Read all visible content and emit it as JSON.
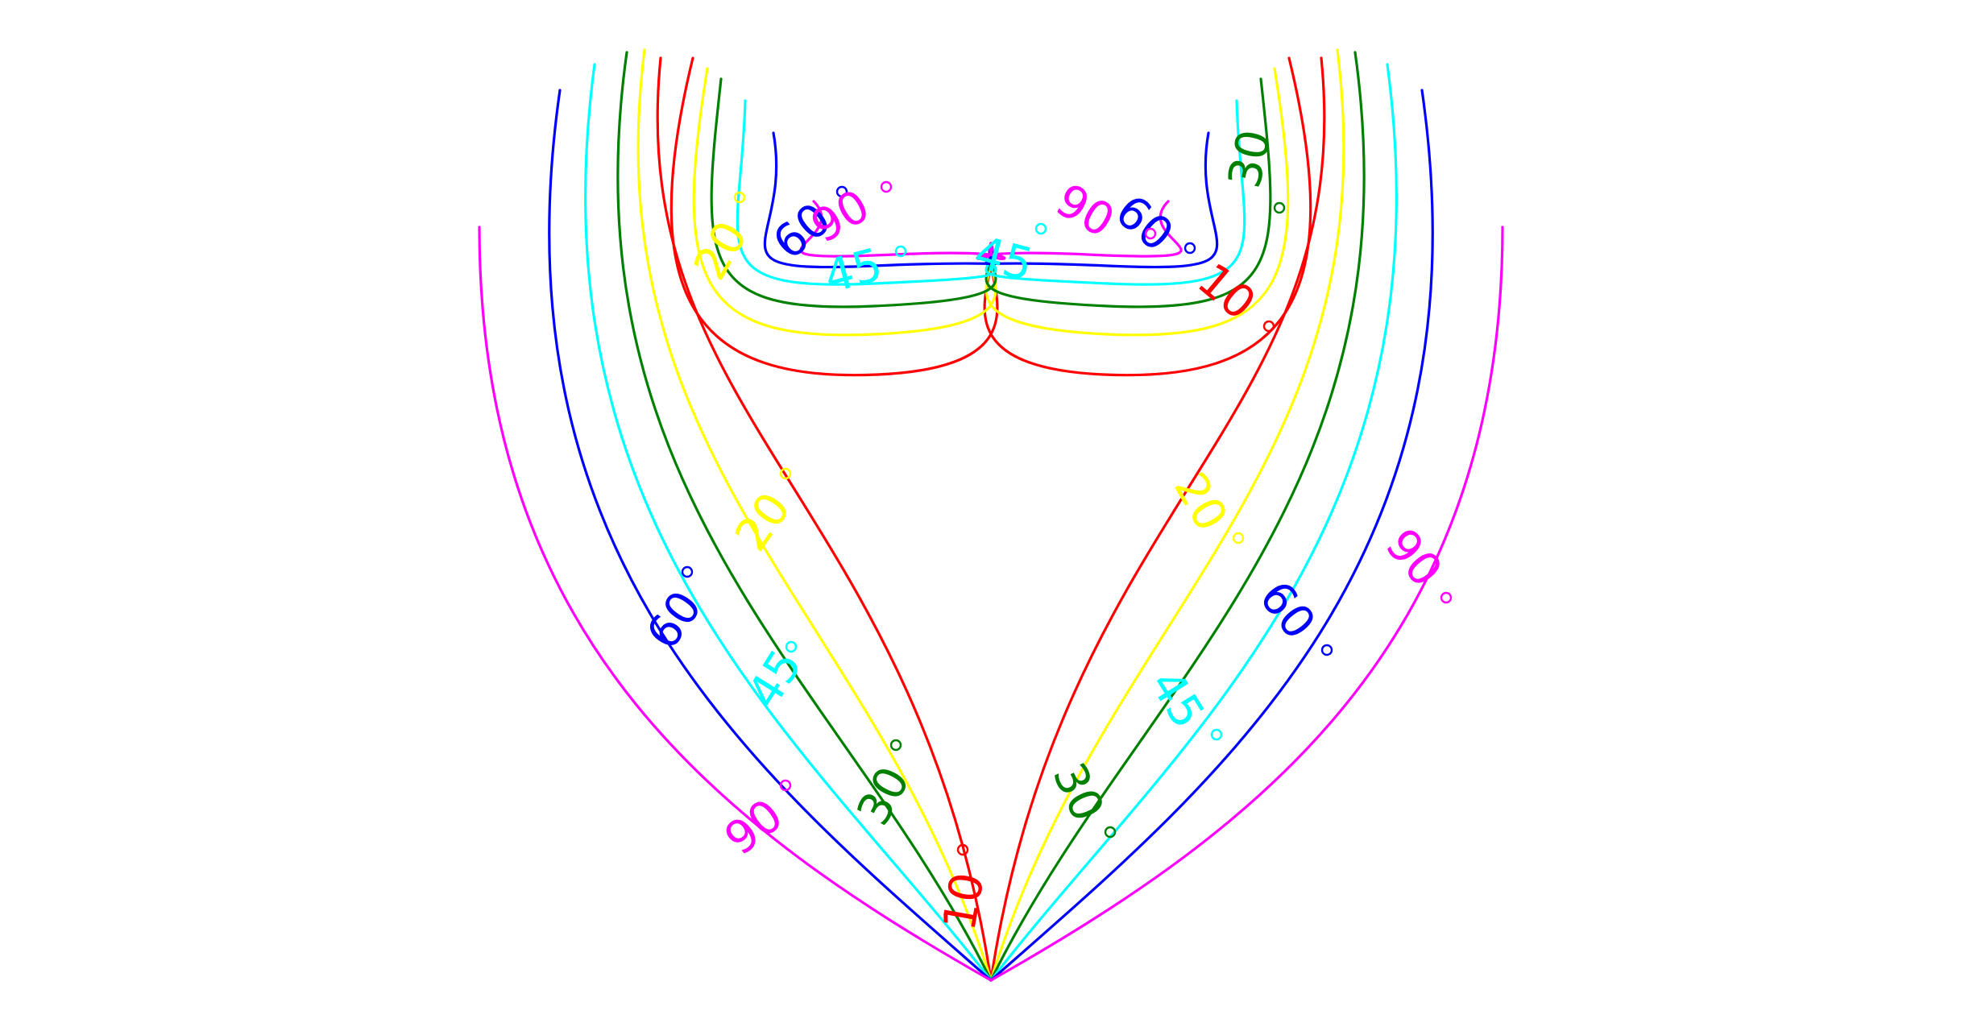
{
  "chart_data": {
    "type": "line",
    "title": "",
    "xlabel": "",
    "ylabel": "",
    "axes_visible": false,
    "grid": false,
    "legend": "none",
    "series": [
      {
        "name": "10",
        "color": "#ff0000"
      },
      {
        "name": "20",
        "color": "#ffff00"
      },
      {
        "name": "30",
        "color": "#008000"
      },
      {
        "name": "45",
        "color": "#00ffff"
      },
      {
        "name": "60",
        "color": "#0000ff"
      },
      {
        "name": "90",
        "color": "#ff00ff"
      }
    ]
  }
}
